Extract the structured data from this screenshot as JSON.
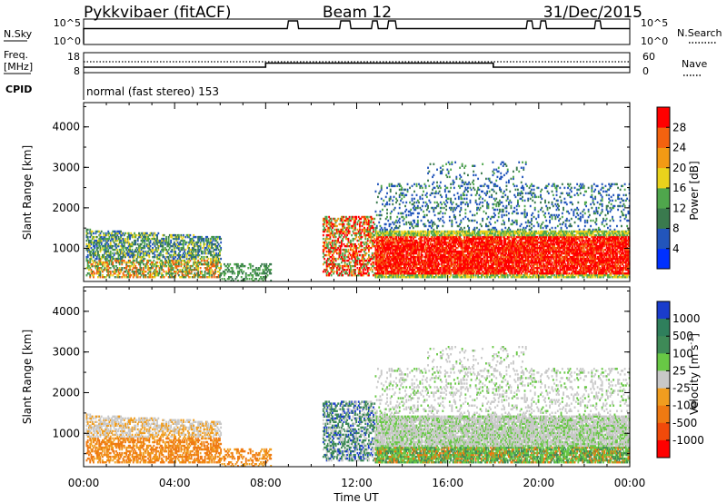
{
  "header": {
    "station": "Pykkvibaer (fitACF)",
    "beam": "Beam 12",
    "date": "31/Dec/2015"
  },
  "nsky_panel": {
    "label": "N.Sky",
    "top_tick": "10^5",
    "bottom_tick": "10^0",
    "right_top_tick": "10^5",
    "right_bottom_tick": "10^0",
    "right_label": "N.Search"
  },
  "freq_panel": {
    "label_line1": "Freq.",
    "label_line2": "[MHz]",
    "left_top_tick": "18",
    "left_bottom_tick": "8",
    "right_top_tick": "60",
    "right_bottom_tick": "0",
    "right_label": "Nave"
  },
  "cpid_panel": {
    "label": "CPID",
    "text": "normal (fast stereo) 153"
  },
  "x_axis": {
    "ticks": [
      "00:00",
      "04:00",
      "08:00",
      "12:00",
      "16:00",
      "20:00",
      "00:00"
    ],
    "label": "Time UT"
  },
  "chart_data": [
    {
      "type": "heatmap",
      "quantity": "Power",
      "ylabel": "Slant Range [km]",
      "yticks": [
        "1000",
        "2000",
        "3000",
        "4000"
      ],
      "ylim": [
        180,
        4600
      ],
      "xlim": [
        0,
        24
      ],
      "colorbar": {
        "label": "Power [dB]",
        "ticks": [
          "4",
          "8",
          "12",
          "16",
          "20",
          "24",
          "28"
        ],
        "colors": [
          "#0030ff",
          "#2255bb",
          "#3a7a4e",
          "#4fa64c",
          "#e9d21c",
          "#f29a14",
          "#f3620f",
          "#ff0000"
        ]
      }
    },
    {
      "type": "heatmap",
      "quantity": "Velocity",
      "ylabel": "Slant Range [km]",
      "yticks": [
        "1000",
        "2000",
        "3000",
        "4000"
      ],
      "ylim": [
        180,
        4600
      ],
      "xlim": [
        0,
        24
      ],
      "colorbar": {
        "label": "Velocity [m s",
        "label_sup": "-1",
        "label_end": "]",
        "ticks": [
          "1000",
          "500",
          "100",
          "25",
          "-25",
          "-100",
          "-500",
          "-1000"
        ],
        "colors": [
          "#1a3ccc",
          "#2f7f5c",
          "#3e8a57",
          "#68c845",
          "#c8c8c8",
          "#f09d1f",
          "#ef7a12",
          "#f14a0a",
          "#ff0000"
        ]
      }
    }
  ]
}
